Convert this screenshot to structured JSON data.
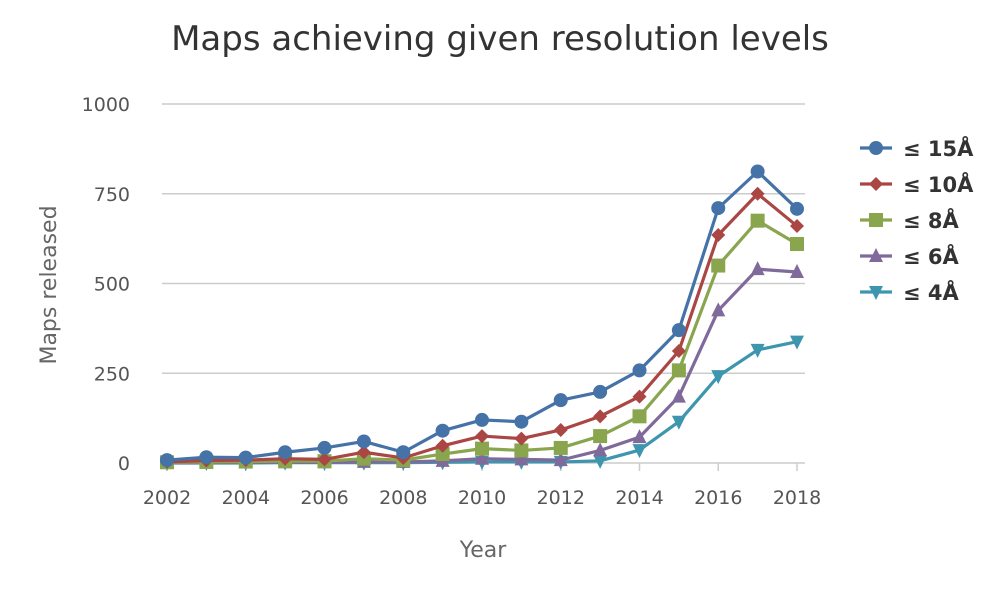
{
  "chart_data": {
    "type": "line",
    "title": "Maps achieving given resolution levels",
    "xlabel": "Year",
    "ylabel": "Maps released",
    "x": [
      2002,
      2003,
      2004,
      2005,
      2006,
      2007,
      2008,
      2009,
      2010,
      2011,
      2012,
      2013,
      2014,
      2015,
      2016,
      2017,
      2018
    ],
    "x_ticks": [
      "2002",
      "2004",
      "2006",
      "2008",
      "2010",
      "2012",
      "2014",
      "2016",
      "2018"
    ],
    "y_ticks": [
      "0",
      "250",
      "500",
      "750",
      "1000"
    ],
    "ylim": [
      0,
      1000
    ],
    "xlim": [
      2002,
      2018
    ],
    "grid": true,
    "legend_position": "right",
    "series": [
      {
        "name": "≤ 15Å",
        "color": "#4572a7",
        "marker": "circle",
        "values": [
          8,
          16,
          15,
          30,
          42,
          60,
          30,
          90,
          120,
          115,
          175,
          198,
          258,
          370,
          710,
          812,
          708
        ]
      },
      {
        "name": "≤ 10Å",
        "color": "#aa4643",
        "marker": "diamond",
        "values": [
          3,
          7,
          8,
          12,
          10,
          30,
          14,
          48,
          75,
          68,
          92,
          130,
          185,
          312,
          635,
          750,
          660
        ]
      },
      {
        "name": "≤ 8Å",
        "color": "#89a54e",
        "marker": "square",
        "values": [
          2,
          3,
          4,
          5,
          5,
          12,
          8,
          25,
          40,
          35,
          42,
          75,
          130,
          258,
          550,
          675,
          610
        ]
      },
      {
        "name": "≤ 6Å",
        "color": "#80699b",
        "marker": "triangle",
        "values": [
          1,
          1,
          2,
          2,
          2,
          3,
          3,
          6,
          12,
          10,
          8,
          35,
          72,
          185,
          425,
          540,
          532
        ]
      },
      {
        "name": "≤ 4Å",
        "color": "#3d96ae",
        "marker": "triangle-down",
        "values": [
          0,
          0,
          0,
          1,
          1,
          1,
          1,
          2,
          3,
          3,
          3,
          6,
          36,
          115,
          242,
          315,
          338
        ]
      }
    ]
  }
}
